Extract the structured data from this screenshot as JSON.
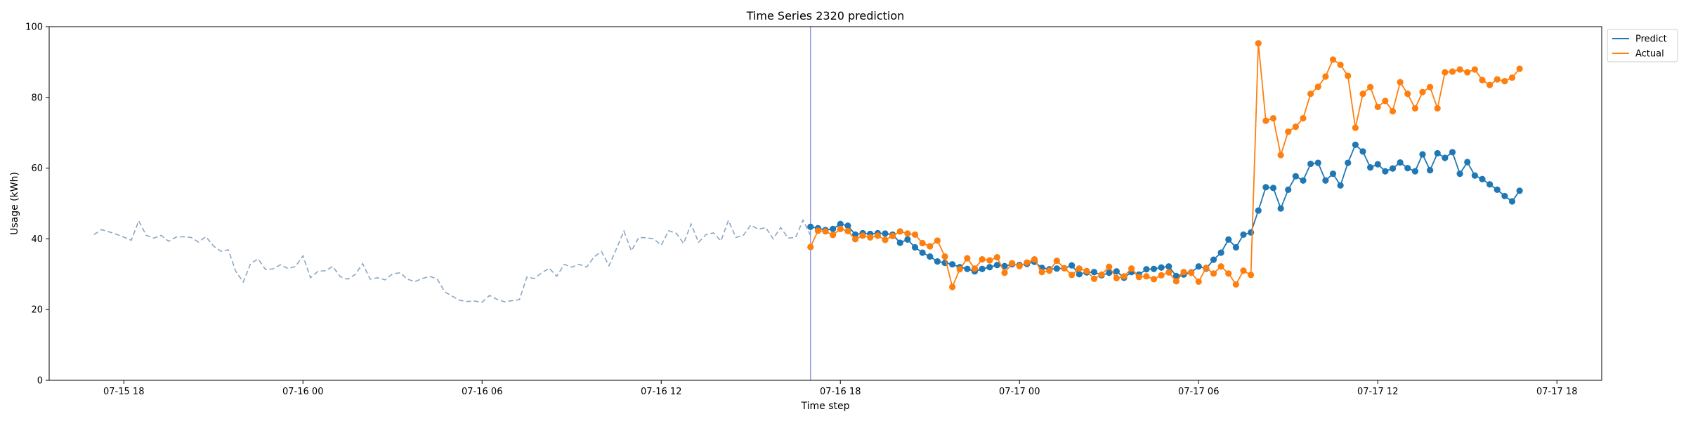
{
  "chart_data": {
    "type": "line",
    "title": "Time Series 2320 prediction",
    "xlabel": "Time step",
    "ylabel": "Usage (kWh)",
    "ylim": [
      0,
      100
    ],
    "yticks": [
      0,
      20,
      40,
      60,
      80,
      100
    ],
    "xlim": [
      "07-15 15:30",
      "07-17 19:30"
    ],
    "xticks": [
      {
        "x": "07-15 18:00",
        "label": "07-15 18"
      },
      {
        "x": "07-16 00:00",
        "label": "07-16 00"
      },
      {
        "x": "07-16 06:00",
        "label": "07-16 06"
      },
      {
        "x": "07-16 12:00",
        "label": "07-16 12"
      },
      {
        "x": "07-16 18:00",
        "label": "07-16 18"
      },
      {
        "x": "07-17 00:00",
        "label": "07-17 00"
      },
      {
        "x": "07-17 06:00",
        "label": "07-17 06"
      },
      {
        "x": "07-17 12:00",
        "label": "07-17 12"
      },
      {
        "x": "07-17 18:00",
        "label": "07-17 18"
      }
    ],
    "grid": false,
    "legend_position": "top-right",
    "forecast_start": "07-16 17:00",
    "colors": {
      "predict": "#1f77b4",
      "actual": "#ff7f0e",
      "history": "#8aa6c6",
      "forecast_marker": "#7f8fd6"
    },
    "history": {
      "start": "07-15 17:00",
      "step_minutes": 15,
      "values": [
        41.2,
        42.6,
        42.0,
        41.3,
        40.5,
        39.6,
        45.1,
        41.0,
        40.2,
        41.0,
        39.3,
        40.5,
        40.6,
        40.4,
        39.1,
        40.6,
        38.0,
        36.5,
        36.9,
        30.8,
        27.8,
        33.1,
        34.3,
        31.3,
        31.5,
        32.7,
        31.6,
        32.2,
        35.2,
        29.0,
        30.8,
        31.0,
        32.2,
        29.3,
        28.6,
        29.9,
        33.0,
        28.6,
        29.0,
        28.4,
        30.1,
        30.4,
        28.6,
        27.9,
        28.8,
        29.4,
        28.6,
        25.0,
        23.8,
        22.6,
        22.3,
        22.4,
        22.1,
        24.0,
        22.9,
        22.2,
        22.5,
        22.8,
        29.2,
        28.8,
        30.4,
        31.7,
        29.4,
        32.8,
        32.0,
        32.8,
        32.0,
        34.9,
        36.4,
        32.4,
        37.2,
        42.2,
        36.6,
        40.4,
        40.3,
        40.0,
        38.2,
        42.3,
        41.6,
        38.7,
        44.2,
        39.0,
        41.2,
        41.7,
        39.4,
        45.2,
        40.4,
        41.0,
        43.9,
        42.7,
        43.2,
        40.0,
        43.2,
        40.2,
        40.4,
        45.3,
        41.0
      ]
    },
    "series": [
      {
        "name": "Predict",
        "start": "07-16 17:00",
        "step_minutes": 15,
        "values": [
          43.4,
          43.0,
          42.5,
          42.8,
          44.2,
          43.7,
          41.2,
          41.6,
          41.4,
          41.6,
          41.5,
          41.2,
          38.9,
          39.8,
          37.6,
          36.1,
          35.0,
          33.6,
          33.2,
          32.8,
          32.0,
          31.5,
          30.8,
          31.5,
          32.0,
          32.6,
          32.3,
          32.8,
          32.6,
          32.9,
          33.5,
          31.8,
          31.4,
          31.6,
          31.7,
          32.5,
          30.0,
          30.5,
          30.6,
          29.7,
          30.4,
          30.8,
          29.0,
          30.6,
          29.9,
          31.4,
          31.5,
          31.9,
          32.2,
          29.5,
          29.9,
          30.5,
          32.2,
          31.6,
          34.1,
          36.1,
          39.8,
          37.6,
          41.2,
          41.8,
          48.0,
          54.6,
          54.4,
          48.6,
          53.9,
          57.7,
          56.5,
          61.2,
          61.5,
          56.5,
          58.4,
          55.1,
          61.5,
          66.6,
          64.7,
          60.2,
          61.1,
          59.1,
          59.9,
          61.6,
          60.0,
          59.1,
          63.9,
          59.4,
          64.2,
          62.9,
          64.5,
          58.4,
          61.7,
          57.9,
          56.9,
          55.4,
          53.9,
          52.1,
          50.6,
          53.6
        ]
      },
      {
        "name": "Actual",
        "start": "07-16 17:00",
        "step_minutes": 15,
        "values": [
          37.7,
          42.3,
          42.1,
          41.1,
          42.8,
          42.2,
          39.9,
          40.9,
          40.4,
          40.9,
          39.7,
          40.8,
          42.1,
          41.5,
          41.2,
          38.8,
          37.9,
          39.5,
          35.0,
          26.4,
          31.4,
          34.5,
          31.6,
          34.2,
          33.9,
          34.8,
          30.4,
          33.1,
          32.3,
          33.3,
          34.2,
          30.6,
          31.0,
          33.8,
          31.7,
          29.8,
          31.6,
          30.9,
          28.7,
          29.9,
          32.1,
          28.9,
          29.4,
          31.6,
          29.2,
          29.4,
          28.6,
          29.7,
          30.5,
          28.0,
          30.6,
          30.4,
          27.9,
          31.8,
          30.2,
          32.2,
          30.2,
          27.1,
          31.0,
          29.8,
          95.3,
          73.4,
          74.1,
          63.7,
          70.3,
          71.7,
          74.1,
          81.0,
          83.0,
          85.9,
          90.7,
          89.2,
          86.1,
          71.4,
          81.0,
          82.9,
          77.3,
          79.0,
          76.1,
          84.3,
          81.0,
          76.9,
          81.5,
          82.9,
          76.9,
          87.1,
          87.3,
          87.9,
          87.1,
          87.9,
          84.9,
          83.5,
          85.1,
          84.6,
          85.6,
          88.1
        ]
      }
    ]
  }
}
